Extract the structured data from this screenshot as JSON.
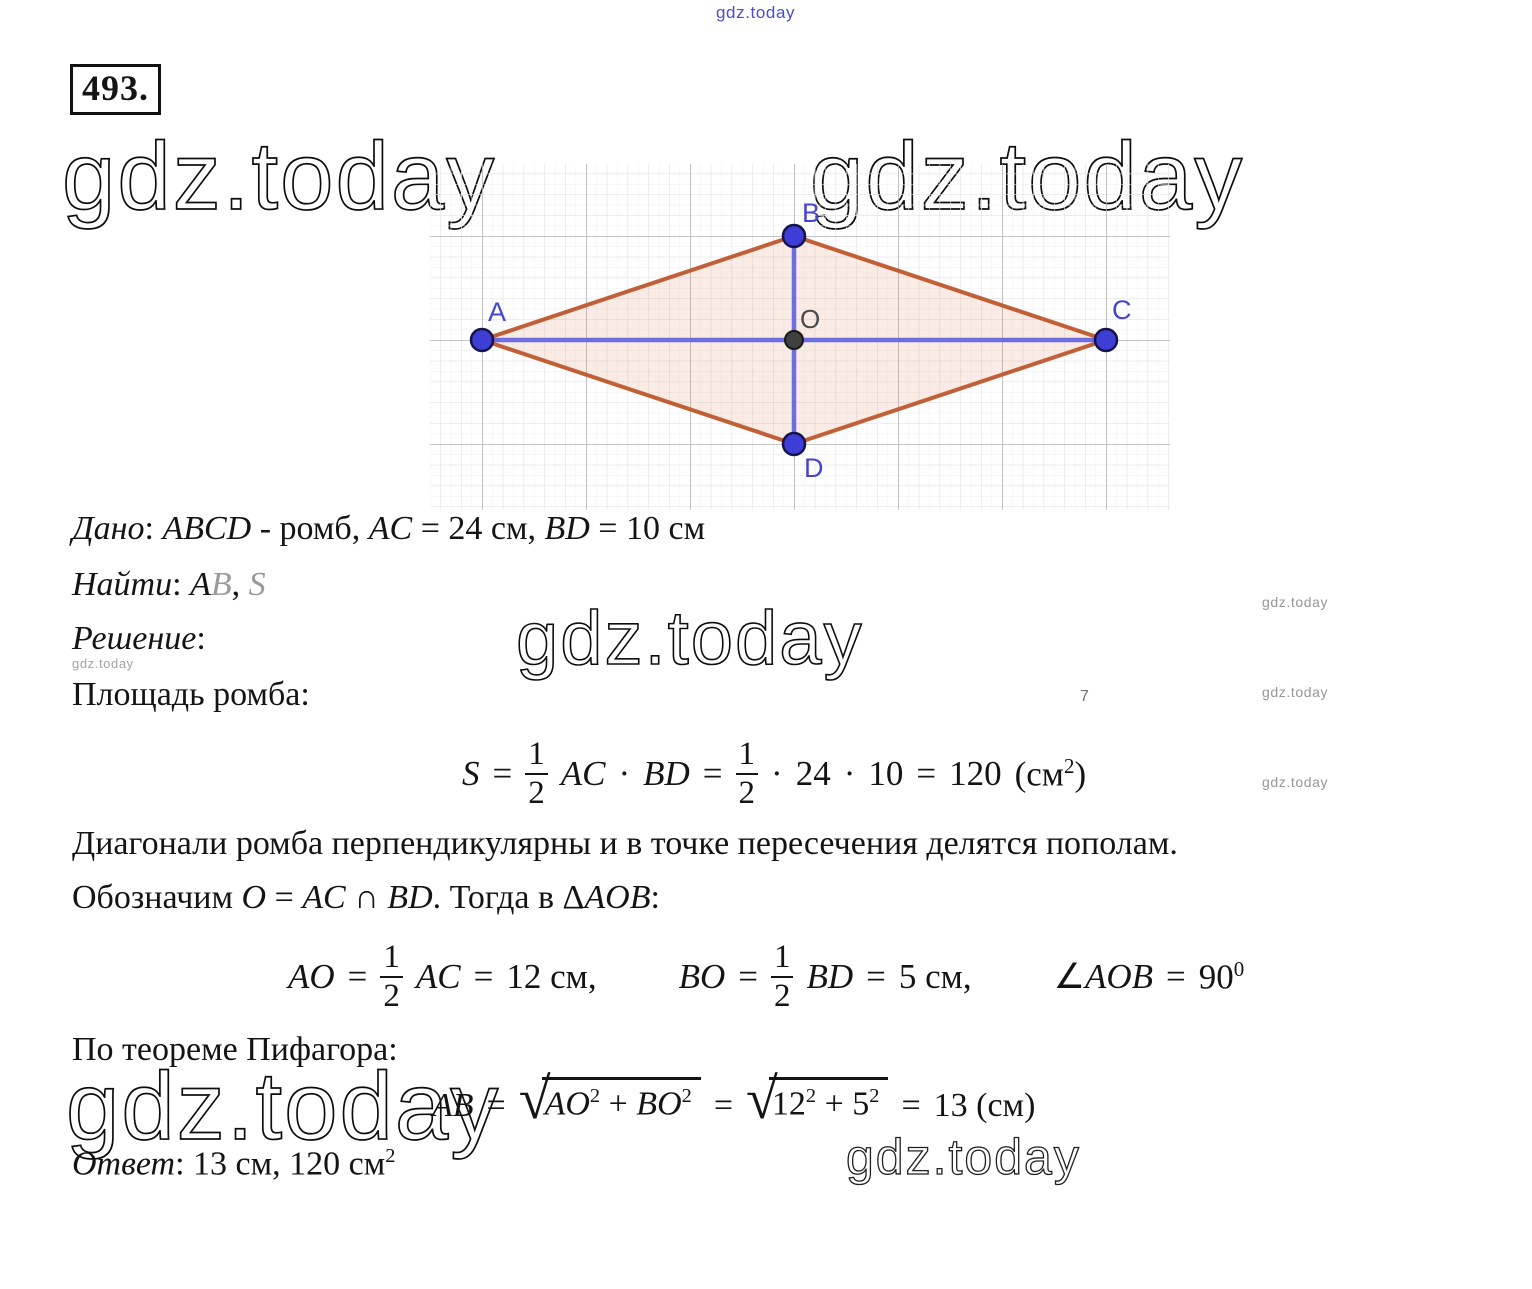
{
  "problem": {
    "number": "493."
  },
  "watermarks": {
    "top_blue": "gdz.today",
    "top_left": "gdz.today",
    "top_right": "gdz.today",
    "center": "gdz.today",
    "under_solution": "gdz.today",
    "right_1": "gdz.today",
    "right_2": "gdz.today",
    "right_3": "gdz.today",
    "stray_char": "7",
    "bottom_left": "gdz.today",
    "bottom_right": "gdz.today",
    "blue_color": "#4d4dc9",
    "gray_color": "#969696"
  },
  "figure": {
    "labels": {
      "a": "A",
      "b": "B",
      "c": "C",
      "d": "D",
      "o": "O"
    },
    "colors": {
      "edge": "#c05f38",
      "fill": "rgba(222,130,95,0.16)",
      "diagonal": "#6f6de2",
      "vertex": "#3e3ed6",
      "vertex_outline": "#14144a",
      "center_point": "#3f3f3f",
      "label": "#4545d0",
      "label_o": "#4a4a4a",
      "grid_minor": "#e3e1e1",
      "grid_major": "#b3b3b3"
    }
  },
  "lines": {
    "given": [
      {
        "t": "Дано",
        "c": "it"
      },
      {
        "t": ": ",
        "c": ""
      },
      {
        "t": "ABCD",
        "c": "mit"
      },
      {
        "t": " - ромб, ",
        "c": ""
      },
      {
        "t": "AC",
        "c": "mit"
      },
      {
        "t": " = 24 см, ",
        "c": ""
      },
      {
        "t": "BD",
        "c": "mit"
      },
      {
        "t": " = 10 см",
        "c": ""
      }
    ],
    "find": [
      {
        "t": "Найти",
        "c": "it"
      },
      {
        "t": ": ",
        "c": ""
      },
      {
        "t": "A",
        "c": "mit"
      },
      {
        "t": "B",
        "c": "mit gray"
      },
      {
        "t": ", ",
        "c": ""
      },
      {
        "t": "S",
        "c": "mit gray"
      }
    ],
    "solution": [
      {
        "t": "Решение",
        "c": "it"
      },
      {
        "t": ":",
        "c": ""
      }
    ],
    "area_caption": [
      {
        "t": "Площадь ромба:",
        "c": ""
      }
    ],
    "para_diagonals": [
      {
        "t": "Диагонали ромба перпендикулярны и в точке пересечения делятся пополам.",
        "c": ""
      }
    ],
    "para_denote": [
      {
        "t": "Обозначим ",
        "c": ""
      },
      {
        "t": "O",
        "c": "mit"
      },
      {
        "t": " = ",
        "c": ""
      },
      {
        "t": "AC",
        "c": "mit"
      },
      {
        "t": " ∩ ",
        "c": ""
      },
      {
        "t": "BD",
        "c": "mit"
      },
      {
        "t": ". Тогда в Δ",
        "c": ""
      },
      {
        "t": "AOB",
        "c": "mit"
      },
      {
        "t": ":",
        "c": ""
      }
    ],
    "pythagoras": [
      {
        "t": "По теореме Пифагора:",
        "c": ""
      }
    ],
    "answer": [
      {
        "t": "Ответ",
        "c": "it"
      },
      {
        "t": ": 13 см, 120 см",
        "c": ""
      },
      {
        "t": "2",
        "c": "sup"
      }
    ]
  },
  "formulas": {
    "area": {
      "s": "S",
      "eq1": "=",
      "f1n": "1",
      "f1d": "2",
      "ac": "AC",
      "dot1": "·",
      "bd": "BD",
      "eq2": "=",
      "f2n": "1",
      "f2d": "2",
      "dot2": "·",
      "n24": "24",
      "dot3": "·",
      "n10": "10",
      "eq3": "=",
      "n120": "120",
      "open": "(см",
      "sup2": "2",
      "close": ")"
    },
    "ao": {
      "lhs": "AO",
      "eq": "=",
      "fn": "1",
      "fd": "2",
      "rhs": "AC",
      "eq2": "=",
      "val": "12 см,"
    },
    "bo": {
      "lhs": "BO",
      "eq": "=",
      "fn": "1",
      "fd": "2",
      "rhs": "BD",
      "eq2": "=",
      "val": "5 см,"
    },
    "angle": {
      "sym": "∠",
      "name": "AOB",
      "eq": "=",
      "val": "90",
      "sup": "0"
    },
    "ab": {
      "lhs": "AB",
      "eq1": "=",
      "rad": "√",
      "r1": {
        "t1": "AO",
        "s1": "2",
        "plus": "+",
        "t2": "BO",
        "s2": "2"
      },
      "eq2": "=",
      "r2": {
        "t1": "12",
        "s1": "2",
        "plus": "+",
        "t2": "5",
        "s2": "2"
      },
      "eq3": "=",
      "val": "13 (см)"
    }
  }
}
